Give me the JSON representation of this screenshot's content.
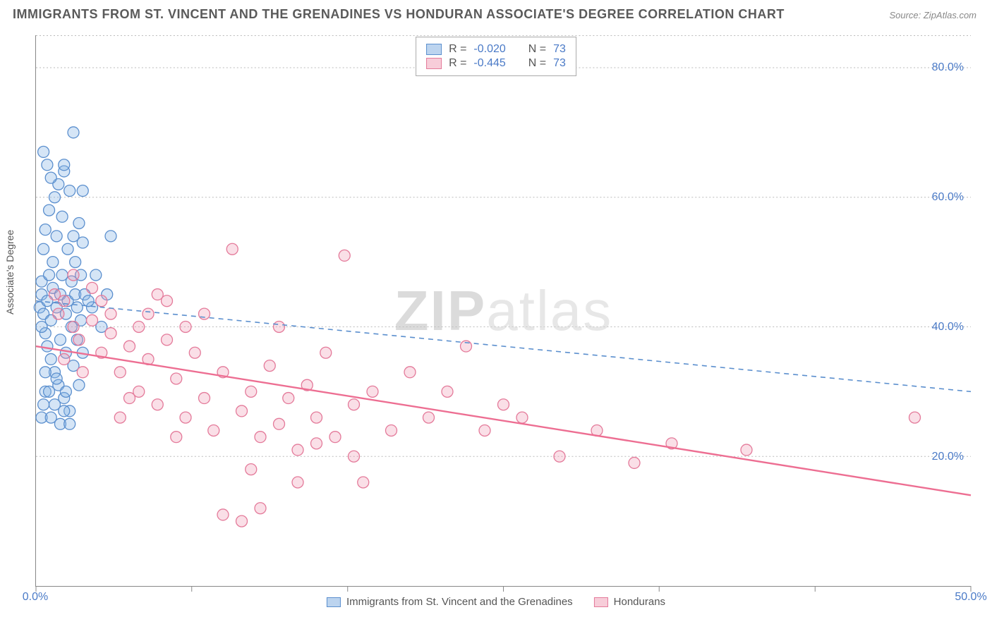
{
  "title": "IMMIGRANTS FROM ST. VINCENT AND THE GRENADINES VS HONDURAN ASSOCIATE'S DEGREE CORRELATION CHART",
  "source": "Source: ZipAtlas.com",
  "ylabel": "Associate's Degree",
  "watermark": {
    "part1": "ZIP",
    "part2": "atlas"
  },
  "chart": {
    "type": "scatter",
    "xlim": [
      0,
      50
    ],
    "ylim": [
      0,
      85
    ],
    "x_ticks": [
      0,
      8.33,
      16.67,
      25,
      33.33,
      41.67,
      50
    ],
    "x_tick_labels": {
      "0": "0.0%",
      "50": "50.0%"
    },
    "y_gridlines": [
      20,
      40,
      60,
      80
    ],
    "y_tick_labels": {
      "20": "20.0%",
      "40": "40.0%",
      "60": "60.0%",
      "80": "80.0%"
    },
    "background_color": "#ffffff",
    "grid_color": "#bbbbbb",
    "axis_color": "#888888",
    "tick_label_color": "#4a7ac7",
    "title_color": "#5a5a5a",
    "title_fontsize": 18,
    "label_fontsize": 14,
    "marker_radius": 8,
    "marker_stroke_width": 1.3,
    "trend_line_width_solid": 2.4,
    "trend_line_width_dashed": 1.6,
    "series": [
      {
        "name": "Immigrants from St. Vincent and the Grenadines",
        "fill_color": "rgba(135,180,230,0.35)",
        "stroke_color": "#5b8fce",
        "swatch_fill": "#bcd4ef",
        "swatch_border": "#5b8fce",
        "R": "-0.020",
        "N": "73",
        "trend": {
          "x1": 0,
          "y1": 44,
          "x2": 50,
          "y2": 30,
          "style": "dashed",
          "color": "#5b8fce"
        },
        "points": [
          [
            0.2,
            43
          ],
          [
            0.3,
            47
          ],
          [
            0.3,
            45
          ],
          [
            0.4,
            42
          ],
          [
            0.4,
            52
          ],
          [
            0.5,
            39
          ],
          [
            0.5,
            55
          ],
          [
            0.6,
            44
          ],
          [
            0.6,
            37
          ],
          [
            0.7,
            58
          ],
          [
            0.7,
            48
          ],
          [
            0.8,
            35
          ],
          [
            0.8,
            41
          ],
          [
            0.9,
            50
          ],
          [
            0.9,
            46
          ],
          [
            1.0,
            33
          ],
          [
            1.0,
            60
          ],
          [
            1.1,
            43
          ],
          [
            1.1,
            54
          ],
          [
            1.2,
            31
          ],
          [
            1.2,
            62
          ],
          [
            1.3,
            45
          ],
          [
            1.3,
            38
          ],
          [
            1.4,
            57
          ],
          [
            1.4,
            48
          ],
          [
            1.5,
            29
          ],
          [
            1.5,
            64
          ],
          [
            1.6,
            42
          ],
          [
            1.6,
            36
          ],
          [
            1.7,
            52
          ],
          [
            1.7,
            44
          ],
          [
            1.8,
            27
          ],
          [
            1.8,
            61
          ],
          [
            1.9,
            40
          ],
          [
            1.9,
            47
          ],
          [
            2.0,
            54
          ],
          [
            2.0,
            34
          ],
          [
            2.1,
            45
          ],
          [
            2.1,
            50
          ],
          [
            2.2,
            38
          ],
          [
            2.2,
            43
          ],
          [
            2.3,
            56
          ],
          [
            2.3,
            31
          ],
          [
            2.4,
            48
          ],
          [
            2.4,
            41
          ],
          [
            2.5,
            53
          ],
          [
            2.5,
            36
          ],
          [
            2.6,
            45
          ],
          [
            0.3,
            26
          ],
          [
            0.4,
            28
          ],
          [
            0.5,
            30
          ],
          [
            0.8,
            26
          ],
          [
            1.0,
            28
          ],
          [
            1.3,
            25
          ],
          [
            1.5,
            27
          ],
          [
            1.8,
            25
          ],
          [
            2.0,
            70
          ],
          [
            0.4,
            67
          ],
          [
            0.6,
            65
          ],
          [
            0.8,
            63
          ],
          [
            1.5,
            65
          ],
          [
            2.5,
            61
          ],
          [
            3.0,
            43
          ],
          [
            3.2,
            48
          ],
          [
            3.5,
            40
          ],
          [
            3.8,
            45
          ],
          [
            4.0,
            54
          ],
          [
            0.3,
            40
          ],
          [
            0.5,
            33
          ],
          [
            0.7,
            30
          ],
          [
            1.1,
            32
          ],
          [
            1.6,
            30
          ],
          [
            2.8,
            44
          ]
        ]
      },
      {
        "name": "Hondurans",
        "fill_color": "rgba(240,150,175,0.30)",
        "stroke_color": "#e47a9a",
        "swatch_fill": "#f7cdd9",
        "swatch_border": "#e47a9a",
        "R": "-0.445",
        "N": "73",
        "trend": {
          "x1": 0,
          "y1": 37,
          "x2": 50,
          "y2": 14,
          "style": "solid",
          "color": "#ed6e92"
        },
        "points": [
          [
            1.0,
            45
          ],
          [
            1.2,
            42
          ],
          [
            1.5,
            44
          ],
          [
            2.0,
            40
          ],
          [
            2.3,
            38
          ],
          [
            3.0,
            41
          ],
          [
            3.5,
            36
          ],
          [
            4.0,
            39
          ],
          [
            4.5,
            33
          ],
          [
            5.0,
            37
          ],
          [
            5.5,
            30
          ],
          [
            6.0,
            35
          ],
          [
            6.5,
            28
          ],
          [
            7.0,
            38
          ],
          [
            7.5,
            32
          ],
          [
            8.0,
            26
          ],
          [
            8.5,
            36
          ],
          [
            9.0,
            29
          ],
          [
            9.5,
            24
          ],
          [
            10.0,
            33
          ],
          [
            10.5,
            52
          ],
          [
            11.0,
            27
          ],
          [
            11.5,
            30
          ],
          [
            12.0,
            23
          ],
          [
            12.5,
            34
          ],
          [
            13.0,
            25
          ],
          [
            13.5,
            29
          ],
          [
            14.0,
            21
          ],
          [
            14.5,
            31
          ],
          [
            15.0,
            26
          ],
          [
            15.5,
            36
          ],
          [
            16.0,
            23
          ],
          [
            16.5,
            51
          ],
          [
            17.0,
            28
          ],
          [
            17.5,
            16
          ],
          [
            18.0,
            30
          ],
          [
            19.0,
            24
          ],
          [
            20.0,
            33
          ],
          [
            21.0,
            26
          ],
          [
            22.0,
            30
          ],
          [
            23.0,
            37
          ],
          [
            24.0,
            24
          ],
          [
            25.0,
            28
          ],
          [
            26.0,
            26
          ],
          [
            28.0,
            20
          ],
          [
            30.0,
            24
          ],
          [
            32.0,
            19
          ],
          [
            34.0,
            22
          ],
          [
            38.0,
            21
          ],
          [
            47.0,
            26
          ],
          [
            4.0,
            42
          ],
          [
            5.5,
            40
          ],
          [
            7.0,
            44
          ],
          [
            3.0,
            46
          ],
          [
            6.0,
            42
          ],
          [
            11.0,
            10
          ],
          [
            12.0,
            12
          ],
          [
            10.0,
            11
          ],
          [
            15.0,
            22
          ],
          [
            17.0,
            20
          ],
          [
            2.0,
            48
          ],
          [
            3.5,
            44
          ],
          [
            8.0,
            40
          ],
          [
            6.5,
            45
          ],
          [
            9.0,
            42
          ],
          [
            13.0,
            40
          ],
          [
            1.5,
            35
          ],
          [
            2.5,
            33
          ],
          [
            5.0,
            29
          ],
          [
            4.5,
            26
          ],
          [
            7.5,
            23
          ],
          [
            11.5,
            18
          ],
          [
            14.0,
            16
          ]
        ]
      }
    ]
  },
  "legend_top_labels": {
    "R": "R =",
    "N": "N ="
  },
  "legend_bottom": [
    {
      "swatch_fill": "#bcd4ef",
      "swatch_border": "#5b8fce",
      "label": "Immigrants from St. Vincent and the Grenadines"
    },
    {
      "swatch_fill": "#f7cdd9",
      "swatch_border": "#e47a9a",
      "label": "Hondurans"
    }
  ]
}
